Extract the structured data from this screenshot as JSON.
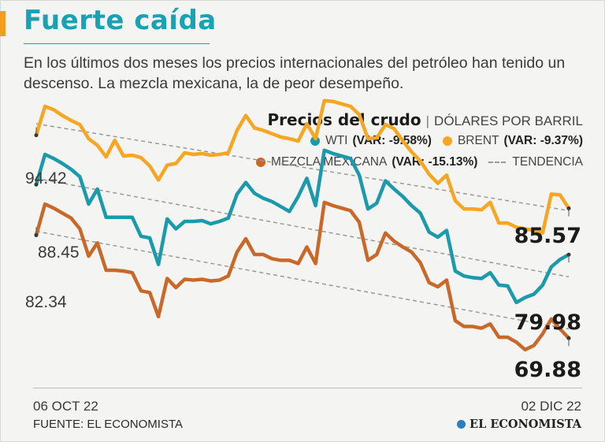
{
  "header": {
    "title": "Fuerte caída",
    "subtitle": "En los últimos dos meses los precios internacionales del petróleo han tenido un descenso. La mezcla mexicana, la de peor desempeño."
  },
  "legend": {
    "heading": "Precios del crudo",
    "unit": "DÓLARES POR BARRIL",
    "wti_label": "WTI",
    "wti_var": "(VAR: -9.58%)",
    "brent_label": "BRENT",
    "brent_var": "(VAR: -9.37%)",
    "mezcla_label": "MEZCLA MEXICANA",
    "mezcla_var": "(VAR: -15.13%)",
    "trend_label": "TENDENCIA"
  },
  "labels": {
    "brent_start": "94.42",
    "wti_start": "88.45",
    "mezcla_start": "82.34",
    "brent_end": "85.57",
    "wti_end": "79.98",
    "mezcla_end": "69.88"
  },
  "footer": {
    "date_start": "06 OCT 22",
    "date_end": "02 DIC 22",
    "source": "FUENTE: EL ECONOMISTA",
    "brand": "EL ECONOMISTA"
  },
  "colors": {
    "wti": "#1a9aaa",
    "brent": "#f5a623",
    "mezcla": "#c8692a",
    "trend": "#999999"
  },
  "chart_data": {
    "type": "line",
    "title": "Precios del crudo",
    "ylabel": "DÓLARES POR BARRIL",
    "x_start": "06 OCT 22",
    "x_end": "02 DIC 22",
    "ylim": [
      66,
      97
    ],
    "series": [
      {
        "name": "BRENT",
        "key": "brent",
        "values": [
          94.42,
          97.9,
          97.5,
          96.8,
          96.2,
          95.7,
          94.0,
          93.2,
          91.8,
          93.8,
          91.9,
          92.0,
          91.7,
          90.7,
          89.0,
          90.8,
          91.0,
          92.3,
          92.1,
          92.2,
          92.0,
          92.1,
          92.3,
          95.0,
          96.8,
          95.3,
          95.0,
          94.6,
          94.2,
          94.0,
          93.7,
          95.8,
          94.0,
          98.6,
          98.5,
          98.2,
          97.9,
          96.9,
          94.0,
          94.1,
          95.7,
          95.2,
          93.7,
          92.4,
          91.3,
          89.7,
          88.6,
          89.6,
          86.5,
          85.5,
          85.5,
          85.4,
          86.3,
          83.8,
          83.8,
          83.3,
          83.1,
          82.9,
          82.6,
          87.3,
          87.2,
          85.57
        ],
        "start_label": "94.42",
        "end_label": "85.57",
        "variation": "(VAR: -9.37%)"
      },
      {
        "name": "WTI",
        "key": "wti",
        "values": [
          88.45,
          92.1,
          91.6,
          91.0,
          90.3,
          89.4,
          86.1,
          87.9,
          84.5,
          84.5,
          84.5,
          84.5,
          82.2,
          82.0,
          78.8,
          84.3,
          83.1,
          84.0,
          84.0,
          84.1,
          83.7,
          84.0,
          84.4,
          87.3,
          88.7,
          87.4,
          86.8,
          86.4,
          85.8,
          85.2,
          87.0,
          89.2,
          85.9,
          92.6,
          92.2,
          91.9,
          91.6,
          89.6,
          85.5,
          86.2,
          88.9,
          87.9,
          87.0,
          85.9,
          85.0,
          82.7,
          82.1,
          82.9,
          78.0,
          77.4,
          77.2,
          77.1,
          77.8,
          76.3,
          76.2,
          74.2,
          74.8,
          75.2,
          76.3,
          78.5,
          79.4,
          79.98
        ],
        "start_label": "88.45",
        "end_label": "79.98",
        "variation": "(VAR: -9.58%)"
      },
      {
        "name": "MEZCLA MEXICANA",
        "key": "mezcla",
        "values": [
          82.34,
          86.1,
          85.6,
          85.0,
          84.4,
          83.1,
          79.8,
          81.4,
          78.1,
          78.1,
          78.0,
          77.8,
          75.6,
          75.4,
          72.5,
          77.1,
          76.0,
          77.0,
          76.9,
          77.0,
          76.8,
          76.9,
          77.4,
          80.3,
          81.9,
          80.0,
          80.0,
          79.5,
          79.3,
          79.3,
          78.9,
          80.9,
          78.9,
          86.3,
          85.9,
          85.6,
          85.3,
          83.9,
          79.3,
          80.0,
          82.6,
          81.6,
          80.9,
          80.3,
          79.0,
          76.6,
          76.1,
          76.9,
          72.0,
          71.3,
          71.3,
          71.1,
          71.6,
          70.0,
          70.0,
          69.4,
          68.5,
          69.0,
          70.4,
          72.2,
          71.0,
          69.88
        ],
        "start_label": "82.34",
        "end_label": "69.88",
        "variation": "(VAR: -15.13%)"
      }
    ],
    "trendlines": [
      {
        "series": "brent",
        "start": 95.8,
        "end": 85.3
      },
      {
        "series": "wti",
        "start": 89.2,
        "end": 77.3
      },
      {
        "series": "mezcla",
        "start": 82.8,
        "end": 71.0
      }
    ]
  }
}
